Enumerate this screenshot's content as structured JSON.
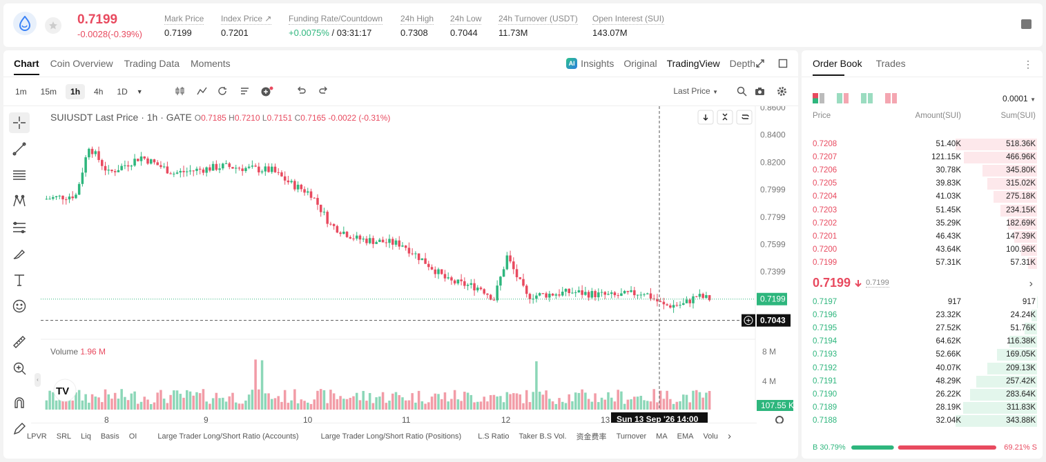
{
  "ticker": {
    "last_price": "0.7199",
    "change": "-0.0028(-0.39%)",
    "stats": [
      {
        "label": "Mark Price",
        "value": "0.7199"
      },
      {
        "label": "Index Price ↗",
        "value": "0.7201"
      },
      {
        "label": "Funding Rate/Countdown",
        "value_green": "+0.0075%",
        "value_rest": " / 03:31:17"
      },
      {
        "label": "24h High",
        "value": "0.7308"
      },
      {
        "label": "24h Low",
        "value": "0.7044"
      },
      {
        "label": "24h Turnover (USDT)",
        "value": "11.73M"
      },
      {
        "label": "Open Interest (SUI)",
        "value": "143.07M"
      }
    ]
  },
  "chart_tabs": [
    "Chart",
    "Coin Overview",
    "Trading Data",
    "Moments"
  ],
  "view_tabs": {
    "insights": "Insights",
    "original": "Original",
    "tradingview": "TradingView",
    "depth": "Depth"
  },
  "intervals": [
    "1m",
    "15m",
    "1h",
    "4h",
    "1D"
  ],
  "price_type": "Last Price",
  "legend": {
    "symbol": "SUIUSDT Last Price · 1h · GATE",
    "o": "0.7185",
    "h": "0.7210",
    "l": "0.7151",
    "c": "0.7165",
    "chg": "-0.0022 (-0.31%)"
  },
  "volume": {
    "label": "Volume",
    "value": "1.96 M",
    "axis": [
      "8 M",
      "4 M"
    ],
    "current": "107.55 K"
  },
  "price_axis": [
    "0.8600",
    "0.8400",
    "0.8200",
    "0.7999",
    "0.7799",
    "0.7599",
    "0.7399"
  ],
  "price_last": "0.7199",
  "price_cross": "0.7043",
  "time_axis": [
    "8",
    "9",
    "10",
    "11",
    "12",
    "13"
  ],
  "crosshair_time": "Sun 13 Sep '26   14:00",
  "indicators": [
    "LPVR",
    "SRL",
    "Liq",
    "Basis",
    "OI",
    "Large Trader Long/Short Ratio (Accounts)",
    "Large Trader Long/Short Ratio (Positions)",
    "L.S Ratio",
    "Taker B.S Vol.",
    "资金费率",
    "Turnover",
    "MA",
    "EMA",
    "Volu"
  ],
  "orderbook": {
    "tabs": [
      "Order Book",
      "Trades"
    ],
    "precision": "0.0001",
    "headers": [
      "Price",
      "Amount(SUI)",
      "Sum(SUI)"
    ],
    "asks": [
      [
        "0.7208",
        "51.40K",
        "518.36K"
      ],
      [
        "0.7207",
        "121.15K",
        "466.96K"
      ],
      [
        "0.7206",
        "30.78K",
        "345.80K"
      ],
      [
        "0.7205",
        "39.83K",
        "315.02K"
      ],
      [
        "0.7204",
        "41.03K",
        "275.18K"
      ],
      [
        "0.7203",
        "51.45K",
        "234.15K"
      ],
      [
        "0.7202",
        "35.29K",
        "182.69K"
      ],
      [
        "0.7201",
        "46.43K",
        "147.39K"
      ],
      [
        "0.7200",
        "43.64K",
        "100.96K"
      ],
      [
        "0.7199",
        "57.31K",
        "57.31K"
      ]
    ],
    "ask_depth": [
      1.0,
      0.9,
      0.667,
      0.608,
      0.531,
      0.452,
      0.352,
      0.284,
      0.195,
      0.111
    ],
    "mid_price": "0.7199",
    "mark": "0.7199",
    "bids": [
      [
        "0.7197",
        "917",
        "917"
      ],
      [
        "0.7196",
        "23.32K",
        "24.24K"
      ],
      [
        "0.7195",
        "27.52K",
        "51.76K"
      ],
      [
        "0.7194",
        "64.62K",
        "116.38K"
      ],
      [
        "0.7193",
        "52.66K",
        "169.05K"
      ],
      [
        "0.7192",
        "40.07K",
        "209.13K"
      ],
      [
        "0.7191",
        "48.29K",
        "257.42K"
      ],
      [
        "0.7190",
        "26.22K",
        "283.64K"
      ],
      [
        "0.7189",
        "28.19K",
        "311.83K"
      ],
      [
        "0.7188",
        "32.04K",
        "343.88K"
      ]
    ],
    "bid_depth": [
      0.003,
      0.07,
      0.15,
      0.338,
      0.491,
      0.608,
      0.749,
      0.825,
      0.907,
      1.0
    ],
    "buy_ratio": "B 30.79%",
    "sell_ratio": "69.21% S",
    "buy_fraction": 0.3079
  },
  "colors": {
    "up": "#2eb67d",
    "down": "#e84a5f"
  }
}
